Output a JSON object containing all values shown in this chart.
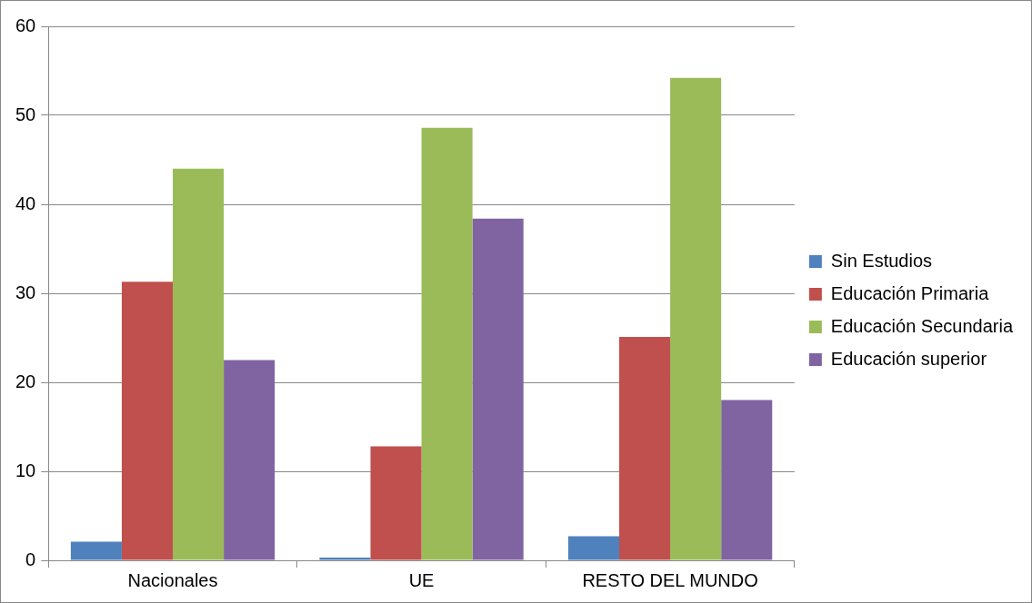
{
  "chart_data": {
    "type": "bar",
    "categories": [
      "Nacionales",
      "UE",
      "RESTO DEL MUNDO"
    ],
    "series": [
      {
        "name": "Sin Estudios",
        "color": "#4f81bd",
        "values": [
          2.1,
          0.3,
          2.7
        ]
      },
      {
        "name": "Educación Primaria",
        "color": "#c0504d",
        "values": [
          31.3,
          12.8,
          25.1
        ]
      },
      {
        "name": "Educación Secundaria",
        "color": "#9bbb59",
        "values": [
          44.0,
          48.6,
          54.2
        ]
      },
      {
        "name": "Educación superior",
        "color": "#8064a2",
        "values": [
          22.5,
          38.4,
          18.0
        ]
      }
    ],
    "ylim": [
      0,
      60
    ],
    "yticks": [
      0,
      10,
      20,
      30,
      40,
      50,
      60
    ],
    "grid": "y",
    "legend": "right"
  }
}
